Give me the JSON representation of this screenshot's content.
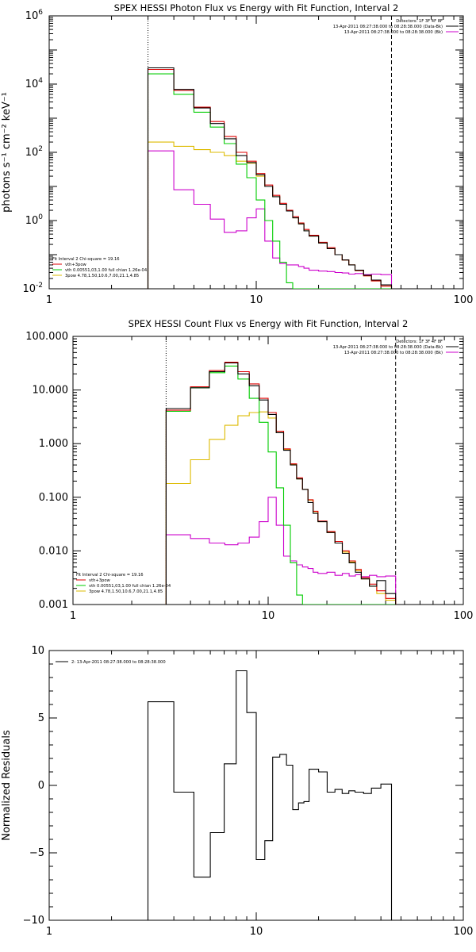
{
  "chart_data": [
    {
      "type": "line",
      "scale": "log-log",
      "title": "SPEX HESSI Photon Flux vs Energy with Fit Function, Interval 2",
      "ylabel": "photons s⁻¹ cm⁻² keV⁻¹",
      "xlim": [
        1,
        100
      ],
      "ylim": [
        0.01,
        1000000
      ],
      "xticks": [
        "1",
        "10",
        "100"
      ],
      "yticks": [
        {
          "value": 0.01,
          "base": "10",
          "exp": "-2"
        },
        {
          "value": 1,
          "base": "10",
          "exp": "0"
        },
        {
          "value": 100,
          "base": "10",
          "exp": "2"
        },
        {
          "value": 10000,
          "base": "10",
          "exp": "4"
        },
        {
          "value": 1000000,
          "base": "10",
          "exp": "6"
        }
      ],
      "vlines": [
        {
          "x": 3.0,
          "style": "dotted"
        },
        {
          "x": 45.0,
          "style": "dashed"
        }
      ],
      "legend_top": [
        {
          "text": "Detectors: 1F 3F 4F 8F",
          "color": "#000000",
          "line": false
        },
        {
          "text": "13-Apr-2011 08:27:38.000 to 08:28:38.000 (Data-Bk)",
          "color": "#000000",
          "line": true
        },
        {
          "text": "13-Apr-2011 08:27:38.000 to 08:28:38.000 (Bk)",
          "color": "#cc00cc",
          "line": true
        }
      ],
      "legend_bottom": [
        {
          "text": "Fit Interval 2   Chi-square = 19.16",
          "color": "#000000",
          "line": false
        },
        {
          "text": "vth+3pow",
          "color": "#dd0000",
          "line": true
        },
        {
          "text": "vth 0.00551,03,1.00  full chian 1.26e-04",
          "color": "#00cc00",
          "line": true
        },
        {
          "text": "3pow 4.78,1.50,10.6,7.00,21.1,4.85",
          "color": "#ddbb00",
          "line": true
        }
      ],
      "x_edges": [
        3,
        3.5,
        4,
        4.5,
        5,
        5.5,
        6,
        6.5,
        7,
        7.5,
        8,
        8.5,
        9,
        9.5,
        10,
        11,
        12,
        13,
        14,
        15,
        16,
        17,
        18,
        20,
        22,
        24,
        26,
        28,
        30,
        33,
        36,
        40,
        45
      ],
      "series": [
        {
          "name": "Data-Bk",
          "color": "#000000",
          "values": [
            30000,
            30000,
            7000,
            7000,
            2000,
            2000,
            700,
            700,
            250,
            250,
            80,
            80,
            50,
            50,
            22,
            10,
            5,
            3,
            1.9,
            1.2,
            0.8,
            0.5,
            0.35,
            0.22,
            0.15,
            0.1,
            0.07,
            0.05,
            0.035,
            0.025,
            0.018,
            0.013
          ]
        },
        {
          "name": "vth+3pow",
          "color": "#dd0000",
          "values": [
            27000,
            27000,
            6500,
            6500,
            2100,
            2100,
            800,
            800,
            290,
            290,
            100,
            100,
            55,
            55,
            24,
            11,
            5.5,
            3.2,
            2.0,
            1.3,
            0.85,
            0.55,
            0.37,
            0.23,
            0.16,
            0.1,
            0.07,
            0.05,
            0.034,
            0.024,
            0.017,
            0.012
          ]
        },
        {
          "name": "vth",
          "color": "#00cc00",
          "values": [
            20000,
            20000,
            5000,
            5000,
            1500,
            1500,
            550,
            550,
            180,
            180,
            45,
            45,
            18,
            18,
            4,
            1,
            0.25,
            0.06,
            0.015,
            0.01,
            0.01,
            0.01,
            0.01,
            0.01,
            0.01,
            0.01,
            0.01,
            0.01,
            0.01,
            0.01,
            0.01,
            0.01
          ]
        },
        {
          "name": "3pow",
          "color": "#ddbb00",
          "values": [
            200,
            200,
            150,
            150,
            120,
            120,
            100,
            100,
            80,
            80,
            55,
            55,
            48,
            48,
            20,
            10,
            5,
            3,
            1.9,
            1.2,
            0.8,
            0.5,
            0.35,
            0.22,
            0.15,
            0.1,
            0.07,
            0.05,
            0.034,
            0.024,
            0.017,
            0.012
          ]
        },
        {
          "name": "Bk",
          "color": "#cc00cc",
          "values": [
            110,
            110,
            8,
            8,
            3,
            3,
            1.1,
            1.1,
            0.45,
            0.45,
            0.5,
            0.5,
            1.2,
            1.2,
            2.2,
            0.25,
            0.08,
            0.055,
            0.05,
            0.05,
            0.045,
            0.04,
            0.035,
            0.033,
            0.032,
            0.03,
            0.029,
            0.027,
            0.028,
            0.026,
            0.027,
            0.026
          ]
        }
      ]
    },
    {
      "type": "line",
      "scale": "log-log",
      "title": "SPEX HESSI Count Flux vs Energy with Fit Function, Interval 2",
      "ylabel": "",
      "xlim": [
        1,
        100
      ],
      "ylim": [
        0.001,
        100
      ],
      "xticks": [
        "1",
        "10",
        "100"
      ],
      "yticks": [
        {
          "value": 0.001,
          "label": "0.001"
        },
        {
          "value": 0.01,
          "label": "0.010"
        },
        {
          "value": 0.1,
          "label": "0.100"
        },
        {
          "value": 1,
          "label": "1.000"
        },
        {
          "value": 10,
          "label": "10.000"
        },
        {
          "value": 100,
          "label": "100.000"
        }
      ],
      "vlines": [
        {
          "x": 3.0,
          "style": "dotted"
        },
        {
          "x": 45.0,
          "style": "dashed"
        }
      ],
      "legend_top": [
        {
          "text": "Detectors: 1F 3F 4F 8F",
          "color": "#000000",
          "line": false
        },
        {
          "text": "13-Apr-2011 08:27:38.000 to 08:28:38.000 (Data-Bk)",
          "color": "#000000",
          "line": true
        },
        {
          "text": "13-Apr-2011 08:27:38.000 to 08:28:38.000 (Bk)",
          "color": "#cc00cc",
          "line": true
        }
      ],
      "legend_bottom": [
        {
          "text": "Fit Interval 2   Chi-square = 19.16",
          "color": "#000000",
          "line": false
        },
        {
          "text": "vth+3pow",
          "color": "#dd0000",
          "line": true
        },
        {
          "text": "vth 0.00551,03,1.00  full chian 1.26e-04",
          "color": "#00cc00",
          "line": true
        },
        {
          "text": "3pow 4.78,1.50,10.6,7.00,21.1,4.85",
          "color": "#ddbb00",
          "line": true
        }
      ],
      "x_edges": [
        3,
        3.5,
        4,
        4.5,
        5,
        5.5,
        6,
        6.5,
        7,
        7.5,
        8,
        8.5,
        9,
        9.5,
        10,
        11,
        12,
        13,
        14,
        15,
        16,
        17,
        18,
        20,
        22,
        24,
        26,
        28,
        30,
        33,
        36,
        40,
        45
      ],
      "series": [
        {
          "name": "Data-Bk",
          "color": "#000000",
          "values": [
            4.5,
            4.5,
            11,
            11,
            22,
            22,
            32,
            32,
            20,
            20,
            12,
            12,
            6.5,
            6.5,
            3.5,
            1.6,
            0.75,
            0.4,
            0.22,
            0.14,
            0.08,
            0.05,
            0.035,
            0.022,
            0.014,
            0.009,
            0.006,
            0.004,
            0.003,
            0.0022,
            0.0028,
            0.0016
          ]
        },
        {
          "name": "vth+3pow",
          "color": "#dd0000",
          "values": [
            4.2,
            4.2,
            11.5,
            11.5,
            23,
            23,
            33,
            33,
            22,
            22,
            13,
            13,
            7,
            7,
            3.8,
            1.7,
            0.8,
            0.42,
            0.23,
            0.14,
            0.09,
            0.055,
            0.036,
            0.023,
            0.015,
            0.01,
            0.0065,
            0.0045,
            0.0032,
            0.0024,
            0.0018,
            0.0013
          ]
        },
        {
          "name": "vth",
          "color": "#00cc00",
          "values": [
            4.0,
            4.0,
            11,
            11,
            21,
            21,
            28,
            28,
            16,
            16,
            7,
            7,
            2.5,
            2.5,
            0.7,
            0.15,
            0.03,
            0.006,
            0.0015,
            0.001,
            0.001,
            0.001,
            0.001,
            0.001,
            0.001,
            0.001,
            0.001,
            0.001,
            0.001,
            0.001,
            0.001,
            0.001
          ]
        },
        {
          "name": "3pow",
          "color": "#ddbb00",
          "values": [
            0.18,
            0.18,
            0.5,
            0.5,
            1.2,
            1.2,
            2.2,
            2.2,
            3.3,
            3.3,
            3.8,
            3.8,
            3.9,
            3.9,
            3.0,
            1.6,
            0.78,
            0.41,
            0.22,
            0.14,
            0.088,
            0.054,
            0.035,
            0.022,
            0.014,
            0.0095,
            0.0062,
            0.0043,
            0.003,
            0.0022,
            0.0016,
            0.0012
          ]
        },
        {
          "name": "Bk",
          "color": "#cc00cc",
          "values": [
            0.02,
            0.02,
            0.017,
            0.017,
            0.014,
            0.014,
            0.013,
            0.013,
            0.014,
            0.014,
            0.018,
            0.018,
            0.035,
            0.035,
            0.1,
            0.03,
            0.008,
            0.0065,
            0.0055,
            0.005,
            0.0047,
            0.004,
            0.0038,
            0.004,
            0.0035,
            0.0038,
            0.0034,
            0.0036,
            0.0033,
            0.0035,
            0.0033,
            0.0034
          ]
        }
      ]
    },
    {
      "type": "line",
      "scale": "log-linear",
      "title": "",
      "ylabel": "Normalized Residuals",
      "xlim": [
        1,
        100
      ],
      "ylim": [
        -10,
        10
      ],
      "xticks": [
        "1",
        "10",
        "100"
      ],
      "yticks": [
        {
          "value": -10,
          "label": "−10"
        },
        {
          "value": -5,
          "label": "−5"
        },
        {
          "value": 0,
          "label": "0"
        },
        {
          "value": 5,
          "label": "5"
        },
        {
          "value": 10,
          "label": "10"
        }
      ],
      "legend_top": [
        {
          "text": "2: 13-Apr-2011 08:27:38.000 to 08:28:38.000",
          "color": "#000000",
          "line": true
        }
      ],
      "x_edges": [
        3,
        3.5,
        4,
        4.5,
        5,
        5.5,
        6,
        6.5,
        7,
        7.5,
        8,
        8.5,
        9,
        9.5,
        10,
        11,
        12,
        13,
        14,
        15,
        16,
        17,
        18,
        20,
        22,
        24,
        26,
        28,
        30,
        33,
        36,
        40,
        45
      ],
      "series": [
        {
          "name": "2: 13-Apr-2011 08:27:38.000 to 08:28:38.000",
          "color": "#000000",
          "values": [
            6.2,
            6.2,
            -0.5,
            -0.5,
            -6.8,
            -6.8,
            -3.5,
            -3.5,
            1.6,
            1.6,
            8.5,
            8.5,
            5.4,
            5.4,
            -5.5,
            -4.1,
            2.1,
            2.3,
            1.5,
            -1.8,
            -1.3,
            -1.2,
            1.2,
            1.0,
            -0.5,
            -0.3,
            -0.6,
            -0.4,
            -0.5,
            -0.6,
            -0.2,
            0.1
          ]
        }
      ]
    }
  ]
}
